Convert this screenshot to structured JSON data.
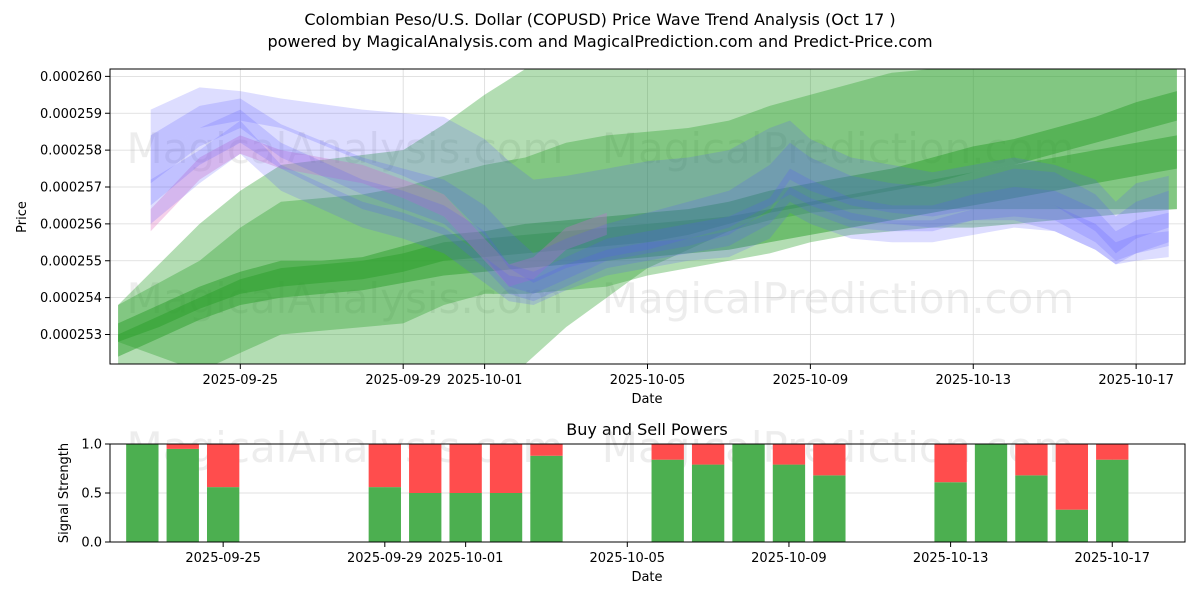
{
  "title_line1": "Colombian Peso/U.S. Dollar (COPUSD) Price Wave Trend Analysis (Oct 17 )",
  "title_line2": "powered by MagicalAnalysis.com and MagicalPrediction.com and Predict-Price.com",
  "watermarks": [
    "MagicalAnalysis.com",
    "MagicalPrediction.com"
  ],
  "colors": {
    "green": "#2ca02c",
    "blue": "#5555ff",
    "pink": "#e377c2",
    "buy": "#4caf50",
    "sell": "#ff4d4d",
    "grid": "#d9d9d9"
  },
  "chart_data": [
    {
      "type": "area",
      "title": "",
      "xlabel": "Date",
      "ylabel": "Price",
      "x_ticks": [
        "2025-09-25",
        "2025-09-29",
        "2025-10-01",
        "2025-10-05",
        "2025-10-09",
        "2025-10-13",
        "2025-10-17"
      ],
      "x_tick_days": [
        3,
        7,
        9,
        13,
        17,
        21,
        25
      ],
      "x_range_days": [
        -0.2,
        26.2
      ],
      "y_ticks": [
        "0.000253",
        "0.000254",
        "0.000255",
        "0.000256",
        "0.000257",
        "0.000258",
        "0.000259",
        "0.000260"
      ],
      "y_tick_values": [
        0.000253,
        0.000254,
        0.000255,
        0.000256,
        0.000257,
        0.000258,
        0.000259,
        0.00026
      ],
      "ylim": [
        0.0002522,
        0.0002602
      ],
      "grid": true,
      "green_bands": [
        {
          "x": [
            0,
            1,
            2,
            3,
            4,
            7,
            8,
            9,
            10,
            11,
            12,
            13,
            14,
            15,
            16,
            17,
            18,
            19,
            20,
            21,
            22,
            23,
            24,
            25,
            26
          ],
          "upper": [
            0.0002538,
            0.0002549,
            0.000256,
            0.0002569,
            0.0002576,
            0.000258,
            0.0002587,
            0.0002595,
            0.0002602,
            0.0002608,
            0.0002612,
            0.0002615,
            0.000262,
            0.0002625,
            0.0002632,
            0.0002638,
            0.0002644,
            0.0002648,
            0.000265,
            0.0002652,
            0.0002654,
            0.0002656,
            0.0002657,
            0.0002658,
            0.000266
          ],
          "lower": [
            0.0002522,
            0.0002512,
            0.0002502,
            0.0002494,
            0.000249,
            0.0002498,
            0.0002506,
            0.0002514,
            0.0002522,
            0.0002532,
            0.000254,
            0.0002548,
            0.0002553,
            0.0002558,
            0.0002561,
            0.0002563,
            0.0002564,
            0.0002564,
            0.0002564,
            0.0002564,
            0.0002564,
            0.0002564,
            0.0002564,
            0.0002564,
            0.0002564
          ]
        },
        {
          "x": [
            0,
            2,
            3,
            4,
            5,
            6,
            7,
            8,
            9,
            10,
            11,
            12,
            13,
            14,
            15,
            16,
            17,
            18,
            19,
            20,
            21,
            22,
            23,
            24,
            25,
            26
          ],
          "upper": [
            0.0002538,
            0.000255,
            0.0002559,
            0.0002566,
            0.0002567,
            0.0002568,
            0.000257,
            0.0002573,
            0.0002576,
            0.0002578,
            0.0002582,
            0.0002584,
            0.0002585,
            0.0002586,
            0.0002588,
            0.0002592,
            0.0002595,
            0.0002598,
            0.0002601,
            0.0002602,
            0.0002602,
            0.0002603,
            0.0002604,
            0.0002605,
            0.0002606,
            0.0002607
          ],
          "lower": [
            0.0002528,
            0.000252,
            0.0002525,
            0.000253,
            0.0002531,
            0.0002532,
            0.0002533,
            0.0002538,
            0.0002541,
            0.0002541,
            0.0002542,
            0.0002543,
            0.0002546,
            0.0002548,
            0.000255,
            0.0002552,
            0.0002555,
            0.0002557,
            0.0002558,
            0.0002559,
            0.0002559,
            0.000256,
            0.0002561,
            0.0002562,
            0.0002563,
            0.0002564
          ]
        },
        {
          "x": [
            0,
            1,
            2,
            3,
            4,
            5,
            6,
            7,
            8,
            9,
            10,
            11,
            12,
            13,
            14,
            15,
            16,
            17,
            18,
            19,
            20,
            21,
            22,
            23,
            24,
            25,
            26
          ],
          "upper": [
            0.0002533,
            0.0002538,
            0.0002543,
            0.0002547,
            0.000255,
            0.000255,
            0.0002551,
            0.0002554,
            0.0002557,
            0.0002558,
            0.000256,
            0.0002561,
            0.0002562,
            0.0002563,
            0.0002564,
            0.0002566,
            0.0002569,
            0.0002571,
            0.0002573,
            0.0002575,
            0.0002578,
            0.0002581,
            0.0002583,
            0.0002586,
            0.0002589,
            0.0002593,
            0.0002596
          ],
          "lower": [
            0.0002528,
            0.0002532,
            0.0002537,
            0.0002541,
            0.0002543,
            0.0002544,
            0.0002545,
            0.0002547,
            0.000255,
            0.0002551,
            0.0002552,
            0.0002553,
            0.0002554,
            0.0002555,
            0.0002557,
            0.000256,
            0.0002563,
            0.0002565,
            0.0002567,
            0.0002569,
            0.0002571,
            0.0002574,
            0.0002576,
            0.0002579,
            0.0002582,
            0.0002585,
            0.0002588
          ]
        },
        {
          "x": [
            0,
            1,
            2,
            3,
            4,
            5,
            6,
            7,
            8,
            9,
            10,
            11,
            12,
            13,
            14,
            15,
            16,
            17,
            18,
            19,
            20,
            21,
            22,
            23,
            24,
            25,
            26
          ],
          "upper": [
            0.000253,
            0.0002535,
            0.000254,
            0.0002545,
            0.0002548,
            0.0002549,
            0.000255,
            0.0002552,
            0.0002555,
            0.0002556,
            0.0002557,
            0.0002558,
            0.0002559,
            0.000256,
            0.0002561,
            0.0002562,
            0.0002564,
            0.0002566,
            0.0002568,
            0.000257,
            0.0002572,
            0.0002574,
            0.0002576,
            0.0002578,
            0.000258,
            0.0002582,
            0.0002584
          ],
          "lower": [
            0.0002524,
            0.0002529,
            0.0002534,
            0.0002538,
            0.000254,
            0.0002541,
            0.0002542,
            0.0002544,
            0.0002546,
            0.0002547,
            0.0002548,
            0.0002549,
            0.000255,
            0.0002551,
            0.0002552,
            0.0002553,
            0.0002555,
            0.0002557,
            0.0002559,
            0.0002561,
            0.0002563,
            0.0002565,
            0.0002567,
            0.0002569,
            0.0002571,
            0.0002573,
            0.0002575
          ]
        }
      ],
      "blue_bands": [
        {
          "x": [
            0.8,
            2,
            3,
            4,
            6,
            7,
            8,
            9,
            9.6,
            10.2,
            11,
            12,
            13,
            14,
            15,
            16,
            16.5,
            17,
            18,
            19,
            20,
            21,
            22,
            23,
            24,
            24.5,
            25,
            25.8
          ],
          "upper": [
            0.0002591,
            0.0002597,
            0.0002596,
            0.0002594,
            0.0002591,
            0.000259,
            0.0002589,
            0.0002583,
            0.0002577,
            0.0002572,
            0.0002573,
            0.0002575,
            0.0002577,
            0.0002578,
            0.000258,
            0.0002586,
            0.0002588,
            0.0002583,
            0.0002578,
            0.0002576,
            0.0002574,
            0.0002576,
            0.0002578,
            0.0002576,
            0.0002572,
            0.0002566,
            0.0002571,
            0.0002573
          ],
          "lower": [
            0.0002578,
            0.0002586,
            0.0002588,
            0.0002586,
            0.0002577,
            0.0002573,
            0.0002568,
            0.0002557,
            0.0002548,
            0.0002544,
            0.0002548,
            0.0002551,
            0.0002553,
            0.0002556,
            0.0002559,
            0.0002565,
            0.0002568,
            0.0002565,
            0.0002561,
            0.000256,
            0.0002559,
            0.0002561,
            0.0002561,
            0.0002558,
            0.0002553,
            0.0002549,
            0.0002552,
            0.0002555
          ]
        },
        {
          "x": [
            0.8,
            2,
            3,
            4,
            6,
            7,
            8,
            9,
            9.6,
            10.2,
            11,
            12,
            13,
            14,
            15,
            16,
            16.5,
            17,
            18,
            19,
            20,
            21,
            22,
            23,
            24,
            24.5,
            25,
            25.8
          ],
          "upper": [
            0.0002584,
            0.0002592,
            0.0002594,
            0.0002587,
            0.0002578,
            0.0002575,
            0.0002572,
            0.0002565,
            0.0002558,
            0.0002552,
            0.0002556,
            0.000256,
            0.0002563,
            0.0002566,
            0.0002569,
            0.0002576,
            0.0002582,
            0.0002578,
            0.0002573,
            0.0002571,
            0.000257,
            0.0002572,
            0.0002575,
            0.0002574,
            0.0002568,
            0.0002562,
            0.0002566,
            0.0002569
          ],
          "lower": [
            0.0002571,
            0.0002581,
            0.0002586,
            0.0002578,
            0.0002568,
            0.0002564,
            0.000256,
            0.0002551,
            0.0002543,
            0.0002541,
            0.0002545,
            0.000255,
            0.0002552,
            0.0002554,
            0.0002557,
            0.0002564,
            0.0002572,
            0.0002569,
            0.0002565,
            0.0002563,
            0.0002562,
            0.0002564,
            0.0002566,
            0.0002565,
            0.0002558,
            0.0002552,
            0.0002556,
            0.0002559
          ]
        },
        {
          "x": [
            0.8,
            2,
            3,
            4,
            6,
            7,
            8,
            9,
            9.6,
            10.2,
            11,
            12,
            13,
            14,
            15,
            16,
            16.5,
            17,
            18,
            19,
            20,
            21,
            22,
            23,
            24,
            24.5,
            25,
            25.8
          ],
          "upper": [
            0.0002578,
            0.0002586,
            0.0002591,
            0.0002582,
            0.0002572,
            0.0002569,
            0.0002565,
            0.0002558,
            0.0002549,
            0.0002547,
            0.0002551,
            0.0002556,
            0.0002558,
            0.000256,
            0.0002562,
            0.0002567,
            0.0002575,
            0.0002572,
            0.0002567,
            0.0002565,
            0.0002565,
            0.0002568,
            0.000257,
            0.0002569,
            0.0002564,
            0.0002558,
            0.0002561,
            0.0002563
          ],
          "lower": [
            0.0002565,
            0.0002576,
            0.0002582,
            0.0002575,
            0.0002564,
            0.0002561,
            0.0002557,
            0.0002548,
            0.0002541,
            0.0002539,
            0.0002543,
            0.0002548,
            0.000255,
            0.0002552,
            0.0002554,
            0.000256,
            0.0002566,
            0.0002563,
            0.0002559,
            0.0002558,
            0.0002558,
            0.0002561,
            0.0002562,
            0.0002561,
            0.0002555,
            0.000255,
            0.0002552,
            0.0002554
          ]
        },
        {
          "x": [
            0.8,
            2,
            3,
            4,
            6,
            7,
            8,
            9,
            9.6,
            10.2,
            11,
            12,
            13,
            14,
            15,
            16,
            16.5,
            17,
            18,
            19,
            20,
            21,
            22,
            23,
            24,
            24.5,
            25,
            25.8
          ],
          "upper": [
            0.0002572,
            0.000258,
            0.0002588,
            0.0002576,
            0.0002566,
            0.0002563,
            0.0002559,
            0.0002551,
            0.0002546,
            0.0002545,
            0.0002549,
            0.0002553,
            0.0002555,
            0.0002556,
            0.0002558,
            0.0002563,
            0.000257,
            0.0002567,
            0.0002563,
            0.0002561,
            0.0002561,
            0.0002564,
            0.0002566,
            0.0002565,
            0.000256,
            0.0002555,
            0.0002557,
            0.0002558
          ],
          "lower": [
            0.000256,
            0.0002571,
            0.0002579,
            0.0002569,
            0.0002559,
            0.0002556,
            0.0002552,
            0.0002544,
            0.0002539,
            0.0002538,
            0.0002542,
            0.0002546,
            0.0002548,
            0.000255,
            0.0002551,
            0.0002556,
            0.0002563,
            0.000256,
            0.0002556,
            0.0002555,
            0.0002555,
            0.0002557,
            0.0002559,
            0.0002558,
            0.0002553,
            0.0002549,
            0.000255,
            0.0002551
          ]
        }
      ],
      "pink_band": {
        "x": [
          0.8,
          2,
          3,
          4,
          6,
          7,
          8,
          9,
          9.6,
          10.2,
          11,
          12
        ],
        "upper": [
          0.0002564,
          0.0002578,
          0.0002584,
          0.000258,
          0.0002576,
          0.0002572,
          0.0002568,
          0.0002556,
          0.0002549,
          0.0002551,
          0.0002559,
          0.0002563
        ],
        "lower": [
          0.0002558,
          0.0002572,
          0.0002579,
          0.0002575,
          0.0002571,
          0.0002567,
          0.0002562,
          0.000255,
          0.0002543,
          0.0002545,
          0.0002553,
          0.0002557
        ]
      }
    },
    {
      "type": "bar",
      "title": "Buy and Sell Powers",
      "xlabel": "Date",
      "ylabel": "Signal Strength",
      "x_ticks": [
        "2025-09-25",
        "2025-09-29",
        "2025-10-01",
        "2025-10-05",
        "2025-10-09",
        "2025-10-13",
        "2025-10-17"
      ],
      "x_tick_days": [
        3,
        7,
        9,
        13,
        17,
        21,
        25
      ],
      "x_range_days": [
        0.2,
        26.8
      ],
      "y_ticks": [
        "0.0",
        "0.5",
        "1.0"
      ],
      "y_tick_values": [
        0,
        0.5,
        1.0
      ],
      "ylim": [
        0,
        1
      ],
      "days": [
        1,
        2,
        3,
        7,
        8,
        9,
        10,
        11,
        14,
        15,
        16,
        17,
        18,
        21,
        22,
        23,
        24,
        25
      ],
      "buy": [
        1.0,
        0.95,
        0.56,
        0.56,
        0.5,
        0.5,
        0.5,
        0.88,
        0.84,
        0.79,
        1.0,
        0.79,
        0.68,
        0.61,
        1.0,
        0.68,
        0.33,
        0.84
      ],
      "sell": [
        0.0,
        0.05,
        0.44,
        0.44,
        0.5,
        0.5,
        0.5,
        0.12,
        0.16,
        0.21,
        0.0,
        0.21,
        0.32,
        0.39,
        0.0,
        0.32,
        0.67,
        0.16
      ]
    }
  ]
}
